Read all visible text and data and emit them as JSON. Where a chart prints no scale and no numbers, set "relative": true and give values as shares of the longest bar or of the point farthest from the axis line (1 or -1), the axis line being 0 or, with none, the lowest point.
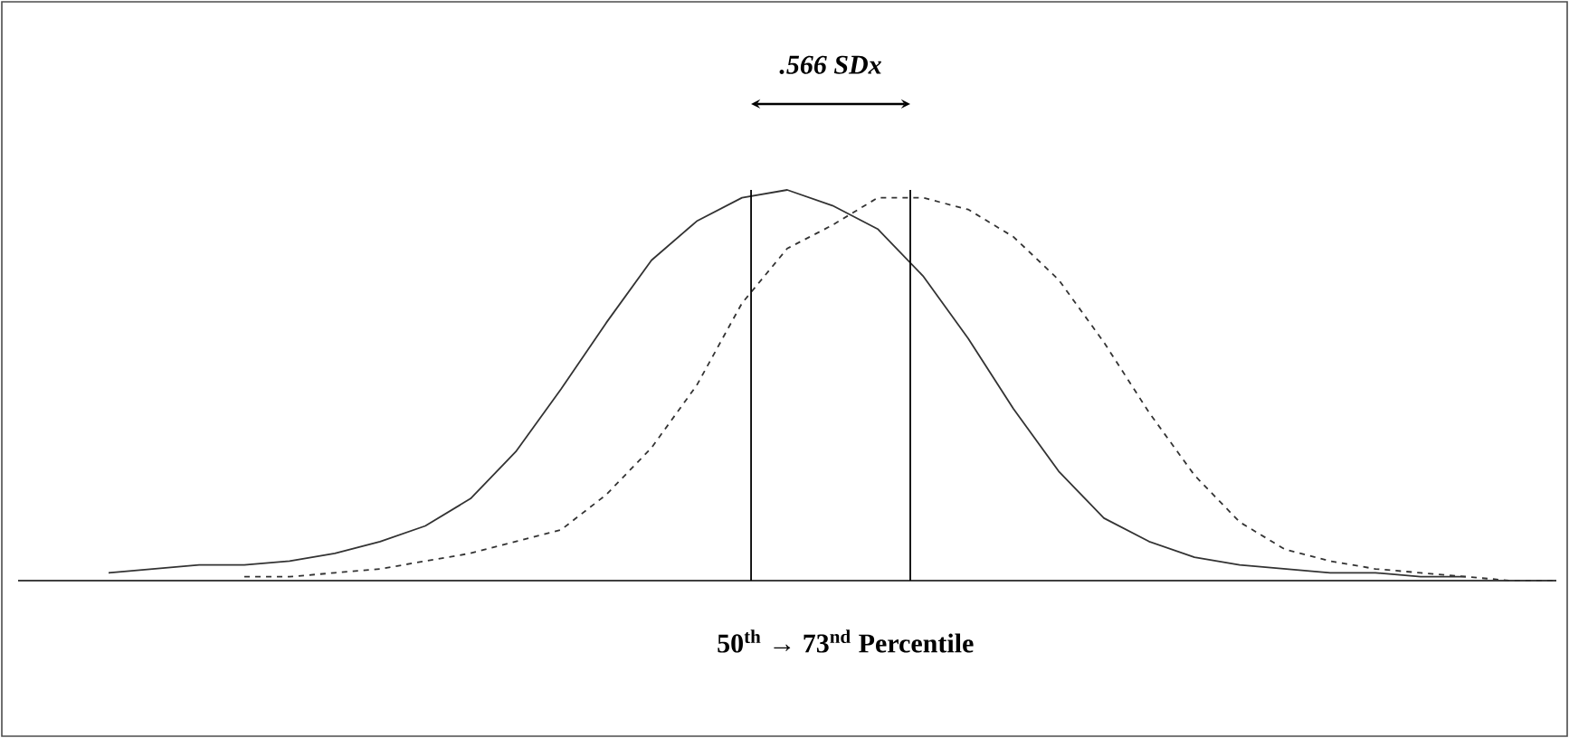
{
  "chart_data": {
    "type": "line",
    "relative": true,
    "marker": "none",
    "categories": [
      null,
      null,
      null,
      null,
      null,
      null,
      null,
      null,
      null,
      null,
      null,
      null,
      null,
      null,
      null,
      null,
      null,
      null,
      null,
      null,
      null,
      null,
      null,
      null,
      null,
      null,
      null,
      null,
      null,
      null,
      null,
      null,
      null,
      null,
      null
    ],
    "series": [
      {
        "color": "#333333",
        "line_style": "solid",
        "values": [
          null,
          null,
          0.02,
          0.03,
          0.04,
          0.04,
          0.05,
          0.07,
          0.1,
          0.14,
          0.21,
          0.33,
          0.49,
          0.66,
          0.82,
          0.92,
          0.98,
          1.0,
          0.96,
          0.9,
          0.78,
          0.62,
          0.44,
          0.28,
          0.16,
          0.1,
          0.06,
          0.04,
          0.03,
          0.02,
          0.02,
          0.01,
          0.01,
          null,
          null
        ]
      },
      {
        "color": "#333333",
        "line_style": "dashed",
        "values": [
          null,
          null,
          null,
          null,
          null,
          0.01,
          0.01,
          0.02,
          0.03,
          0.05,
          0.07,
          0.1,
          0.13,
          0.22,
          0.34,
          0.5,
          0.71,
          0.85,
          0.91,
          0.98,
          0.98,
          0.95,
          0.88,
          0.77,
          0.61,
          0.43,
          0.27,
          0.15,
          0.08,
          0.05,
          0.03,
          0.02,
          0.01,
          0.0,
          0.0
        ]
      }
    ],
    "annotations": [
      ".566 SDx",
      "50$^{th}$ → 73$^{nd}$  Percentile"
    ]
  }
}
